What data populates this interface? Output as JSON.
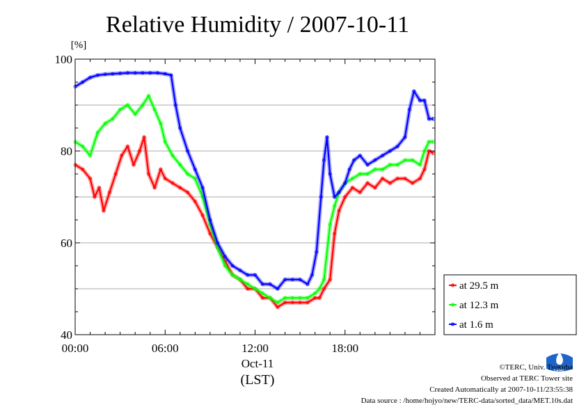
{
  "chart_data": {
    "type": "line",
    "title": "Relative Humidity / 2007-10-11",
    "ylabel": "[%]",
    "ylim": [
      40,
      100
    ],
    "yticks": [
      "40",
      "60",
      "80",
      "100"
    ],
    "xlim": [
      0,
      24
    ],
    "xticks": [
      {
        "hour": 0,
        "label": "00:00"
      },
      {
        "hour": 6,
        "label": "06:00"
      },
      {
        "hour": 12,
        "label": "12:00"
      },
      {
        "hour": 18,
        "label": "18:00"
      }
    ],
    "xdate": "Oct-11",
    "xunit": "(LST)",
    "grid": true,
    "legend_position": "right",
    "series": [
      {
        "name": "at 29.5 m",
        "color": "#ff0000",
        "x": [
          0,
          0.5,
          1,
          1.3,
          1.6,
          1.9,
          2.3,
          2.7,
          3.1,
          3.5,
          3.9,
          4.3,
          4.6,
          4.9,
          5.3,
          5.7,
          6.0,
          6.5,
          7.0,
          7.5,
          8.0,
          8.5,
          9.0,
          9.5,
          10.0,
          10.5,
          11.0,
          11.5,
          12.0,
          12.5,
          13.0,
          13.5,
          14.0,
          14.5,
          15.0,
          15.5,
          16.0,
          16.3,
          16.6,
          17.0,
          17.3,
          17.6,
          18.0,
          18.5,
          19.0,
          19.5,
          20.0,
          20.5,
          21.0,
          21.5,
          22.0,
          22.5,
          23.0,
          23.3,
          23.6,
          23.9
        ],
        "y": [
          77,
          76,
          74,
          70,
          72,
          67,
          71,
          75,
          79,
          81,
          77,
          80,
          83,
          75,
          72,
          76,
          74,
          73,
          72,
          71,
          69,
          66,
          62,
          59,
          56,
          53,
          52,
          50,
          50,
          48,
          48,
          46,
          47,
          47,
          47,
          47,
          48,
          48,
          50,
          52,
          62,
          67,
          70,
          72,
          71,
          73,
          72,
          74,
          73,
          74,
          74,
          73,
          74,
          76,
          80,
          79.5
        ]
      },
      {
        "name": "at 12.3 m",
        "color": "#00ff00",
        "x": [
          0,
          0.5,
          1,
          1.5,
          2,
          2.5,
          3,
          3.5,
          4,
          4.5,
          4.9,
          5.3,
          5.7,
          6.0,
          6.5,
          7.0,
          7.5,
          8.0,
          8.5,
          9.0,
          9.5,
          10.0,
          10.5,
          11.0,
          11.5,
          12.0,
          12.5,
          13.0,
          13.5,
          14.0,
          14.5,
          15.0,
          15.5,
          16.0,
          16.3,
          16.6,
          17.0,
          17.3,
          17.6,
          18.0,
          18.5,
          19.0,
          19.5,
          20.0,
          20.5,
          21.0,
          21.5,
          22.0,
          22.5,
          23.0,
          23.3,
          23.6,
          23.9
        ],
        "y": [
          82,
          81,
          79,
          84,
          86,
          87,
          89,
          90,
          88,
          90,
          92,
          89,
          86,
          82,
          79,
          77,
          75,
          74,
          70,
          64,
          59,
          55,
          53,
          52,
          51,
          50,
          49,
          48,
          47,
          48,
          48,
          48,
          48,
          49,
          50,
          52,
          64,
          68,
          71,
          73,
          74,
          75,
          75,
          76,
          76,
          77,
          77,
          78,
          78,
          77,
          80,
          82,
          82
        ]
      },
      {
        "name": "at 1.6 m",
        "color": "#0000ff",
        "x": [
          0,
          0.5,
          1,
          1.5,
          2,
          2.5,
          3,
          3.5,
          4,
          4.5,
          5,
          5.5,
          6.0,
          6.4,
          6.7,
          7.0,
          7.5,
          8.0,
          8.5,
          9.0,
          9.5,
          10.0,
          10.5,
          11.0,
          11.5,
          12.0,
          12.5,
          13.0,
          13.5,
          14.0,
          14.5,
          15.0,
          15.5,
          15.8,
          16.1,
          16.4,
          16.6,
          16.8,
          17.0,
          17.3,
          17.6,
          18.0,
          18.3,
          18.6,
          19.0,
          19.5,
          20.0,
          20.5,
          21.0,
          21.5,
          22.0,
          22.3,
          22.6,
          23.0,
          23.3,
          23.6,
          23.9
        ],
        "y": [
          94,
          95,
          96,
          96.5,
          96.7,
          96.8,
          96.9,
          97,
          97,
          97,
          97,
          97,
          96.8,
          96.5,
          90,
          85,
          80,
          76,
          72,
          65,
          60,
          57,
          55,
          54,
          53,
          53,
          51,
          51,
          50,
          52,
          52,
          52,
          51,
          53,
          58,
          70,
          78,
          83,
          75,
          70,
          71,
          73,
          76,
          78,
          79,
          77,
          78,
          79,
          80,
          81,
          83,
          89,
          93,
          91,
          91,
          87,
          87
        ]
      }
    ]
  },
  "credits": {
    "line1": "©TERC, Univ. Tsukuba",
    "line2": "Observed at TERC Tower site",
    "line3": "Created Automatically at 2007-10-11/23:55:38",
    "line4": "Data source : /home/hojyo/new/TERC-data/sorted_data/MET.10s.dat",
    "logo_text": "TERC"
  }
}
